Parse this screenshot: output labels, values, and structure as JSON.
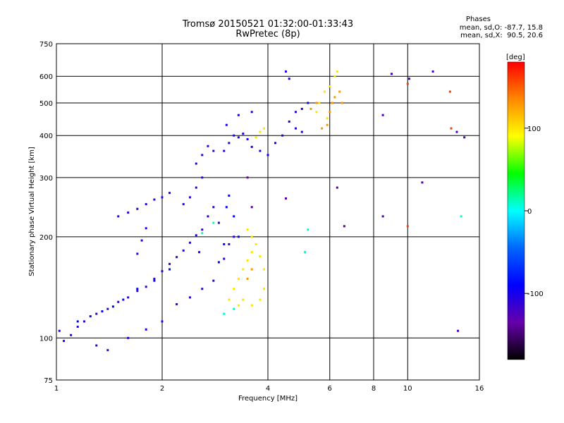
{
  "chart_data": {
    "type": "scatter",
    "title": "Tromsø 20150521 01:32:00-01:33:43",
    "subtitle": "RwPretec (8p)",
    "xlabel": "Frequency [MHz]",
    "ylabel": "Stationary phase Virtual Height [km]",
    "x_scale": "log",
    "y_scale": "log",
    "xlim": [
      1,
      16
    ],
    "ylim": [
      75,
      750
    ],
    "x_ticks": [
      1,
      2,
      4,
      6,
      8,
      10,
      16
    ],
    "y_ticks": [
      75,
      100,
      200,
      300,
      400,
      500,
      600,
      750
    ],
    "grid": true,
    "colorbar": {
      "label": "[deg]",
      "range": [
        -180,
        180
      ],
      "ticks": [
        100,
        0,
        -100
      ],
      "colors": [
        "#000000",
        "#6600aa",
        "#0000ff",
        "#0066ff",
        "#00ffff",
        "#00ff00",
        "#ffff00",
        "#ff8800",
        "#ff0000"
      ]
    },
    "phase_stats": {
      "heading": "Phases",
      "line_o": "mean, sd,O: -87.7, 15.8",
      "line_x": "mean, sd,X:  90.5, 20.6"
    },
    "series": [
      {
        "phase": -110,
        "points": [
          [
            1.02,
            105
          ],
          [
            1.05,
            98
          ],
          [
            1.1,
            102
          ],
          [
            1.15,
            108
          ],
          [
            1.2,
            112
          ],
          [
            1.3,
            118
          ],
          [
            1.4,
            122
          ],
          [
            1.5,
            128
          ],
          [
            1.6,
            132
          ],
          [
            1.7,
            138
          ],
          [
            1.8,
            142
          ],
          [
            1.9,
            150
          ],
          [
            2.0,
            158
          ],
          [
            2.1,
            166
          ],
          [
            2.2,
            174
          ],
          [
            2.3,
            182
          ],
          [
            2.4,
            192
          ],
          [
            2.5,
            202
          ],
          [
            1.5,
            230
          ],
          [
            1.6,
            236
          ],
          [
            1.7,
            242
          ],
          [
            1.8,
            250
          ],
          [
            1.9,
            258
          ],
          [
            2.0,
            262
          ],
          [
            2.1,
            270
          ],
          [
            2.3,
            250
          ],
          [
            2.4,
            262
          ],
          [
            2.5,
            280
          ],
          [
            2.6,
            300
          ],
          [
            1.7,
            178
          ],
          [
            1.75,
            195
          ],
          [
            1.8,
            212
          ],
          [
            2.5,
            330
          ],
          [
            2.6,
            350
          ],
          [
            2.7,
            372
          ],
          [
            2.8,
            360
          ],
          [
            2.55,
            180
          ],
          [
            2.6,
            210
          ],
          [
            2.7,
            230
          ],
          [
            2.8,
            245
          ],
          [
            2.9,
            220
          ],
          [
            2.2,
            126
          ],
          [
            2.4,
            132
          ],
          [
            2.6,
            140
          ],
          [
            2.8,
            148
          ],
          [
            3.0,
            172
          ],
          [
            3.1,
            190
          ],
          [
            3.2,
            200
          ],
          [
            1.3,
            95
          ],
          [
            1.4,
            92
          ],
          [
            1.6,
            100
          ],
          [
            1.8,
            106
          ],
          [
            2.0,
            112
          ]
        ]
      },
      {
        "phase": -100,
        "points": [
          [
            3.0,
            360
          ],
          [
            3.1,
            380
          ],
          [
            3.2,
            400
          ],
          [
            3.3,
            395
          ],
          [
            3.4,
            405
          ],
          [
            3.5,
            390
          ],
          [
            3.6,
            370
          ],
          [
            3.8,
            360
          ],
          [
            4.0,
            350
          ],
          [
            4.2,
            380
          ],
          [
            4.4,
            400
          ],
          [
            4.6,
            440
          ],
          [
            4.8,
            470
          ],
          [
            5.0,
            480
          ],
          [
            5.2,
            500
          ],
          [
            4.5,
            620
          ],
          [
            4.6,
            590
          ],
          [
            4.8,
            420
          ],
          [
            5.0,
            410
          ],
          [
            3.05,
            430
          ],
          [
            3.3,
            460
          ],
          [
            3.6,
            470
          ]
        ]
      },
      {
        "phase": -90,
        "points": [
          [
            2.9,
            168
          ],
          [
            3.0,
            190
          ],
          [
            3.05,
            245
          ],
          [
            3.1,
            265
          ],
          [
            3.2,
            230
          ],
          [
            3.3,
            200
          ],
          [
            1.15,
            112
          ],
          [
            1.25,
            116
          ],
          [
            1.35,
            120
          ],
          [
            1.45,
            124
          ],
          [
            1.55,
            130
          ],
          [
            1.7,
            140
          ],
          [
            1.9,
            148
          ],
          [
            2.1,
            160
          ]
        ]
      },
      {
        "phase": 100,
        "points": [
          [
            3.1,
            130
          ],
          [
            3.2,
            140
          ],
          [
            3.3,
            150
          ],
          [
            3.4,
            160
          ],
          [
            3.5,
            170
          ],
          [
            3.6,
            180
          ],
          [
            3.7,
            190
          ],
          [
            3.8,
            175
          ],
          [
            3.9,
            160
          ],
          [
            3.5,
            210
          ],
          [
            3.6,
            200
          ],
          [
            3.4,
            130
          ],
          [
            3.6,
            125
          ],
          [
            3.8,
            130
          ],
          [
            3.9,
            140
          ],
          [
            3.3,
            125
          ],
          [
            3.7,
            395
          ],
          [
            3.8,
            410
          ],
          [
            3.9,
            420
          ],
          [
            5.5,
            470
          ],
          [
            5.6,
            500
          ],
          [
            5.8,
            540
          ],
          [
            6.0,
            560
          ],
          [
            6.2,
            600
          ],
          [
            6.3,
            620
          ],
          [
            5.9,
            450
          ]
        ]
      },
      {
        "phase": 130,
        "points": [
          [
            5.7,
            420
          ],
          [
            5.9,
            430
          ],
          [
            6.0,
            470
          ],
          [
            6.1,
            500
          ],
          [
            6.2,
            520
          ],
          [
            6.4,
            540
          ],
          [
            6.5,
            500
          ],
          [
            3.5,
            150
          ],
          [
            3.6,
            160
          ],
          [
            5.3,
            480
          ],
          [
            5.5,
            500
          ]
        ]
      },
      {
        "phase": 10,
        "points": [
          [
            3.0,
            118
          ],
          [
            3.2,
            122
          ],
          [
            5.1,
            180
          ],
          [
            5.2,
            210
          ],
          [
            14.2,
            230
          ],
          [
            2.6,
            205
          ],
          [
            2.8,
            220
          ]
        ]
      },
      {
        "phase": -120,
        "points": [
          [
            9.0,
            610
          ],
          [
            10.1,
            590
          ],
          [
            11.8,
            620
          ],
          [
            13.8,
            410
          ],
          [
            14.5,
            395
          ],
          [
            8.5,
            230
          ],
          [
            8.5,
            460
          ],
          [
            11.0,
            290
          ],
          [
            13.9,
            105
          ]
        ]
      },
      {
        "phase": 160,
        "points": [
          [
            10.0,
            570
          ],
          [
            10.0,
            215
          ],
          [
            13.2,
            540
          ],
          [
            13.3,
            420
          ]
        ]
      },
      {
        "phase": -140,
        "points": [
          [
            6.3,
            280
          ],
          [
            3.5,
            300
          ],
          [
            3.6,
            245
          ],
          [
            4.5,
            260
          ],
          [
            6.6,
            215
          ]
        ]
      }
    ]
  }
}
